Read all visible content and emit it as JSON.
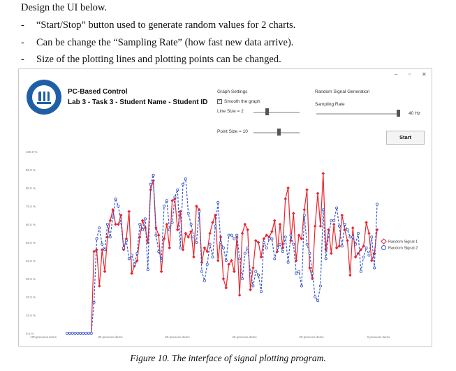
{
  "doc": {
    "heading": "Design the UI below.",
    "bullets": [
      "“Start/Stop” button used to generate random values for 2 charts.",
      "Can be change the “Sampling Rate” (how fast new data arrive).",
      "Size of the plotting lines and plotting points can be changed."
    ],
    "bullet_mark": "-",
    "caption": "Figure 10.   The interface of signal plotting program."
  },
  "app": {
    "window_controls": [
      "–",
      "▫",
      "✕"
    ],
    "title_line1": "PC-Based Control",
    "title_line2": "Lab 3 - Task 3 - Student Name - Student ID",
    "graph_settings": {
      "label": "Graph Settings",
      "smooth_label": "Smooth the graph",
      "smooth_checked": true,
      "line_size_label": "Line Size = 2",
      "line_size": 2,
      "point_size_label": "Point Size = 10",
      "point_size": 10
    },
    "random_gen": {
      "label": "Random Signal Generation",
      "sampling_label": "Sampling Rate",
      "sampling_value": "40 Hz",
      "start_label": "Start"
    }
  },
  "chart_data": {
    "type": "line",
    "y_ticks": [
      "100.0 %",
      "90.0 %",
      "80.0 %",
      "70.0 %",
      "60.0 %",
      "50.0 %",
      "40.0 %",
      "30.0 %",
      "20.0 %",
      "10.0 %",
      "0.0 %"
    ],
    "x_ticks": [
      "100 previous items",
      "80 previous items",
      "60 previous items",
      "40 previous items",
      "20 previous items",
      "0 previous items"
    ],
    "ylim": [
      0,
      100
    ],
    "x_range": [
      -100,
      0
    ],
    "grid": false,
    "legend_position": "right",
    "series": [
      {
        "name": "Random Signal 1",
        "color": "#e8242c",
        "style": "solid",
        "values": [
          0,
          0,
          0,
          0,
          0,
          0,
          0,
          0,
          0,
          0,
          45,
          46,
          26,
          46,
          34,
          53,
          62,
          68,
          60,
          60,
          65,
          46,
          52,
          67,
          33,
          37,
          40,
          53,
          62,
          58,
          50,
          79,
          84,
          58,
          54,
          34,
          52,
          60,
          47,
          73,
          74,
          57,
          67,
          46,
          55,
          53,
          56,
          42,
          70,
          68,
          39,
          47,
          45,
          55,
          61,
          65,
          40,
          53,
          30,
          25,
          38,
          40,
          34,
          53,
          21,
          55,
          60,
          57,
          24,
          36,
          51,
          50,
          42,
          52,
          54,
          53,
          56,
          62,
          45,
          60,
          47,
          74,
          80,
          51,
          66,
          40,
          54,
          52,
          68,
          79,
          36,
          30,
          59,
          77,
          59,
          88,
          46,
          57,
          44,
          60,
          47,
          48,
          65,
          57,
          51,
          32,
          58,
          42,
          44,
          46,
          48,
          61,
          55,
          40,
          44,
          57
        ]
      },
      {
        "name": "Random Signal 2",
        "color": "#3455c9",
        "style": "dashed",
        "values": [
          0,
          0,
          0,
          0,
          0,
          0,
          0,
          0,
          0,
          0,
          17,
          52,
          58,
          49,
          46,
          60,
          53,
          64,
          74,
          70,
          61,
          47,
          51,
          41,
          43,
          38,
          44,
          60,
          57,
          63,
          35,
          82,
          87,
          54,
          45,
          40,
          70,
          73,
          57,
          61,
          75,
          79,
          47,
          82,
          85,
          66,
          60,
          53,
          50,
          67,
          34,
          29,
          38,
          49,
          42,
          59,
          72,
          50,
          47,
          40,
          54,
          54,
          52,
          54,
          41,
          30,
          44,
          47,
          34,
          26,
          34,
          32,
          23,
          50,
          47,
          52,
          52,
          41,
          47,
          49,
          45,
          53,
          39,
          54,
          49,
          33,
          34,
          26,
          65,
          49,
          44,
          33,
          20,
          18,
          26,
          68,
          41,
          54,
          62,
          62,
          69,
          59,
          48,
          60,
          57,
          53,
          53,
          49,
          55,
          34,
          42,
          47,
          43,
          53,
          36,
          71
        ]
      }
    ]
  }
}
